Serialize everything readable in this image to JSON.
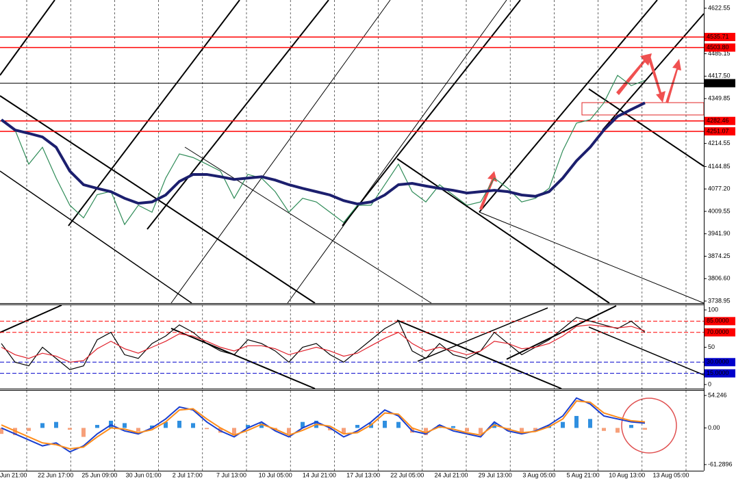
{
  "chart_data": [
    {
      "type": "line",
      "ylim": [
        3738.95,
        4622.55
      ],
      "yticks": [
        4622.55,
        4485.15,
        {
          "value": 4417.5,
          "label": "4417.50"
        },
        4349.85,
        4214.55,
        4144.85,
        {
          "value": 4077.2,
          "label": "4077.20"
        },
        4009.55,
        {
          "value": 3941.9,
          "label": "3941.90"
        },
        3874.25,
        {
          "value": 3806.6,
          "label": "3806.60"
        },
        3738.95
      ],
      "hlines": [
        {
          "value": 4535.71,
          "color": "#ff0000"
        },
        {
          "value": 4503.8,
          "label": "4503.80",
          "color": "#ff0000"
        },
        {
          "value": 4396.35,
          "color": "#000000"
        },
        {
          "value": 4282.46,
          "color": "#ff0000"
        },
        {
          "value": 4251.07,
          "color": "#ff0000"
        }
      ],
      "series": [
        {
          "color": "#2e8b57",
          "values": [
            4286,
            4255,
            4152,
            4203,
            4110,
            4028,
            3990,
            4060,
            4070,
            3970,
            4028,
            4007,
            4110,
            4183,
            4172,
            4152,
            4131,
            4049,
            4121,
            4110,
            4069,
            4007,
            4049,
            4038,
            4007,
            3976,
            4028,
            4028,
            4090,
            4152,
            4069,
            4038,
            4090,
            4059,
            4028,
            4038,
            4110,
            4079,
            4038,
            4049,
            4079,
            4193,
            4276,
            4286,
            4337,
            4420,
            4389,
            4405
          ]
        },
        {
          "color": "#1c1f6e",
          "values": [
            4286,
            4255,
            4245,
            4234,
            4203,
            4131,
            4090,
            4079,
            4069,
            4049,
            4034,
            4038,
            4059,
            4100,
            4121,
            4121,
            4114,
            4106,
            4110,
            4114,
            4104,
            4090,
            4079,
            4069,
            4059,
            4042,
            4032,
            4038,
            4059,
            4090,
            4094,
            4086,
            4079,
            4073,
            4065,
            4069,
            4073,
            4069,
            4059,
            4055,
            4069,
            4110,
            4162,
            4203,
            4255,
            4296,
            4317,
            4337
          ]
        }
      ]
    },
    {
      "type": "line",
      "ylim": [
        0,
        100
      ],
      "yticks": [
        100,
        50,
        0
      ],
      "hlines": [
        {
          "value": 85,
          "label": "85.0000",
          "color": "#ff0000"
        },
        {
          "value": 70,
          "label": "70.0000",
          "color": "#ff0000"
        },
        {
          "value": 30,
          "label": "30.0000",
          "color": "#0000cc"
        },
        {
          "value": 15,
          "label": "15.0000",
          "color": "#0000cc"
        }
      ],
      "series": [
        {
          "color": "#000000",
          "values": [
            55,
            30,
            25,
            50,
            35,
            20,
            25,
            60,
            70,
            40,
            35,
            55,
            65,
            80,
            70,
            55,
            45,
            40,
            60,
            55,
            45,
            30,
            50,
            55,
            40,
            30,
            45,
            60,
            75,
            85,
            45,
            35,
            55,
            40,
            35,
            45,
            70,
            55,
            40,
            50,
            60,
            75,
            90,
            85,
            80,
            75,
            85,
            70
          ]
        },
        {
          "color": "#e0202a",
          "values": [
            50,
            40,
            35,
            42,
            38,
            30,
            32,
            48,
            58,
            48,
            42,
            50,
            58,
            68,
            65,
            58,
            50,
            45,
            52,
            52,
            48,
            40,
            45,
            50,
            45,
            38,
            42,
            52,
            62,
            70,
            55,
            45,
            50,
            45,
            40,
            45,
            58,
            55,
            48,
            50,
            55,
            65,
            78,
            80,
            78,
            76,
            78,
            72
          ]
        }
      ]
    },
    {
      "type": "bar",
      "ylim": [
        -61.2896,
        54.246
      ],
      "yticks": [
        54.246,
        {
          "value": 0,
          "label": "0.00"
        },
        -61.2896
      ],
      "colors": [
        "#2f8fe0",
        "#f6a07a"
      ],
      "values": [
        -10,
        -12,
        -5,
        8,
        10,
        -3,
        -15,
        5,
        12,
        8,
        -6,
        4,
        10,
        12,
        8,
        -2,
        -8,
        -12,
        5,
        8,
        -4,
        -10,
        10,
        12,
        -4,
        -10,
        5,
        8,
        12,
        10,
        -8,
        -12,
        5,
        3,
        -6,
        -10,
        8,
        -5,
        -8,
        -4,
        4,
        10,
        20,
        15,
        -5,
        -8,
        5,
        -3
      ],
      "series": [
        {
          "color": "#1a3fcf",
          "values": [
            0,
            -10,
            -20,
            -30,
            -25,
            -40,
            -30,
            -10,
            5,
            -5,
            -10,
            0,
            15,
            35,
            30,
            10,
            -5,
            -15,
            0,
            10,
            -5,
            -15,
            0,
            10,
            0,
            -15,
            -5,
            10,
            30,
            20,
            -5,
            -10,
            5,
            -5,
            -10,
            -15,
            10,
            -5,
            -10,
            -5,
            5,
            20,
            50,
            40,
            20,
            15,
            10,
            8
          ]
        },
        {
          "color": "#ff8c1a",
          "values": [
            5,
            -5,
            -15,
            -25,
            -28,
            -35,
            -32,
            -15,
            0,
            -2,
            -8,
            -3,
            10,
            30,
            32,
            15,
            0,
            -12,
            -4,
            6,
            -2,
            -12,
            -4,
            6,
            3,
            -10,
            -8,
            5,
            25,
            23,
            0,
            -8,
            2,
            -2,
            -8,
            -12,
            5,
            -2,
            -8,
            -6,
            2,
            15,
            45,
            43,
            25,
            18,
            12,
            10
          ]
        }
      ]
    }
  ],
  "x_labels": [
    "Jun 21:00",
    "22 Jun 17:00",
    "25 Jun 09:00",
    "30 Jun 01:00",
    "2 Jul 17:00",
    "7 Jul 13:00",
    "10 Jul 05:00",
    "14 Jul 21:00",
    "17 Jul 13:00",
    "22 Jul 05:00",
    "24 Jul 21:00",
    "29 Jul 13:00",
    "3 Aug 05:00",
    "5 Aug 21:00",
    "10 Aug 13:00",
    "13 Aug 05:00"
  ]
}
